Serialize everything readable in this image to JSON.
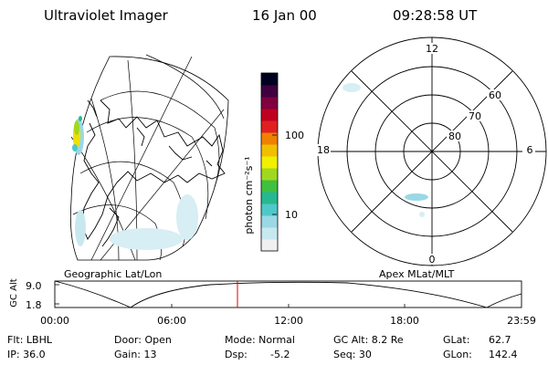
{
  "header": {
    "instrument": "Ultraviolet Imager",
    "date": "16 Jan 00",
    "time": "09:28:58 UT"
  },
  "colorbar": {
    "unit_label": "photon cm⁻²s⁻¹",
    "ticks": [
      "100",
      "10"
    ],
    "scale": "log",
    "colors": [
      "#f0f0f0",
      "#c8e8f0",
      "#9ad8e6",
      "#4fc8c8",
      "#28b890",
      "#40c040",
      "#a0d820",
      "#f0f000",
      "#f0c000",
      "#f08000",
      "#e02020",
      "#c00020",
      "#800040",
      "#400040",
      "#000020"
    ]
  },
  "left_map": {
    "caption": "Geographic Lat/Lon"
  },
  "right_map": {
    "caption": "Apex MLat/MLT",
    "mlt_labels": {
      "top": "12",
      "left": "18",
      "right": "6",
      "bottom": "0"
    },
    "lat_labels": [
      "60",
      "70",
      "80"
    ]
  },
  "timeline": {
    "y_label": "GC Alt",
    "y_ticks": [
      "9.0",
      "1.8"
    ],
    "x_ticks": [
      "00:00",
      "06:00",
      "12:00",
      "18:00",
      "23:59"
    ],
    "current_time_marker": "09:28:58"
  },
  "status": {
    "flt": "Flt: LBHL",
    "ip": "IP: 36.0",
    "door": "Door: Open",
    "gain": "Gain: 13",
    "mode": "Mode: Normal",
    "dsp": "Dsp:",
    "dsp_value": "-5.2",
    "gc_alt": "GC Alt: 8.2 Re",
    "seq": "Seq: 30",
    "glat": "GLat:",
    "glat_value": "62.7",
    "glon": "GLon:",
    "glon_value": "142.4"
  }
}
